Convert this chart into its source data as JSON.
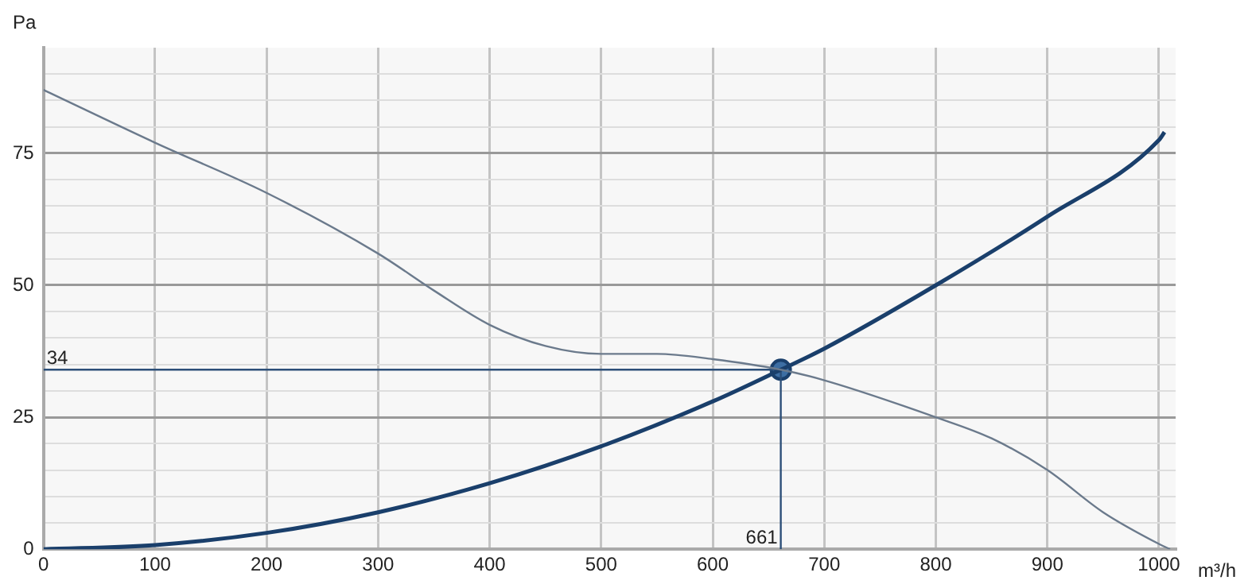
{
  "chart_data": {
    "type": "line",
    "xlabel": "m³/h",
    "ylabel": "Pa",
    "xlim": [
      0,
      1015
    ],
    "ylim": [
      0,
      95
    ],
    "xticks": [
      0,
      100,
      200,
      300,
      400,
      500,
      600,
      700,
      800,
      900,
      1000
    ],
    "yticks": [
      0,
      {
        "value": 5,
        "label": null
      },
      {
        "value": 10,
        "label": null
      },
      {
        "value": 15,
        "label": null
      },
      {
        "value": 20,
        "label": null
      },
      25,
      {
        "value": 30,
        "label": null
      },
      {
        "value": 35,
        "label": null
      },
      {
        "value": 40,
        "label": null
      },
      {
        "value": 45,
        "label": null
      },
      50,
      {
        "value": 55,
        "label": null
      },
      {
        "value": 60,
        "label": null
      },
      {
        "value": 65,
        "label": null
      },
      {
        "value": 70,
        "label": null
      },
      75,
      {
        "value": 80,
        "label": null
      },
      {
        "value": 85,
        "label": null
      },
      {
        "value": 90,
        "label": null
      }
    ],
    "grid": true,
    "legend": false,
    "marker": "none",
    "line_style": "solid",
    "series": [
      {
        "color": "#6b7a8c",
        "x": [
          0,
          100,
          200,
          300,
          350,
          400,
          450,
          500,
          550,
          600,
          661,
          700,
          800,
          850,
          900,
          950,
          1000,
          1010
        ],
        "values": [
          87,
          77,
          67.5,
          56,
          49,
          42.5,
          38.5,
          37,
          37,
          36,
          34,
          32,
          25,
          21,
          15,
          7,
          1,
          0
        ]
      },
      {
        "color": "#1a3f6b",
        "x": [
          0,
          100,
          200,
          300,
          400,
          500,
          600,
          661,
          700,
          800,
          900,
          1000,
          1005
        ],
        "values": [
          0,
          0.8,
          3.1,
          7,
          12.5,
          19.5,
          28,
          34,
          38,
          50,
          63,
          77.5,
          79
        ]
      },
      {
        "color": "#2c4f78",
        "x": [
          0,
          661
        ],
        "values": [
          34,
          34
        ]
      },
      {
        "color": "#2c4f78",
        "x": [
          661,
          661
        ],
        "values": [
          0,
          34
        ]
      },
      {
        "type": "scatter",
        "marker": "circle",
        "color": "#1a3f6b",
        "x": [
          661
        ],
        "values": [
          34
        ]
      }
    ],
    "annotations": [
      {
        "text": "34",
        "x": 0,
        "y": 34
      },
      {
        "text": "661",
        "x": 661,
        "y": 0
      }
    ]
  }
}
